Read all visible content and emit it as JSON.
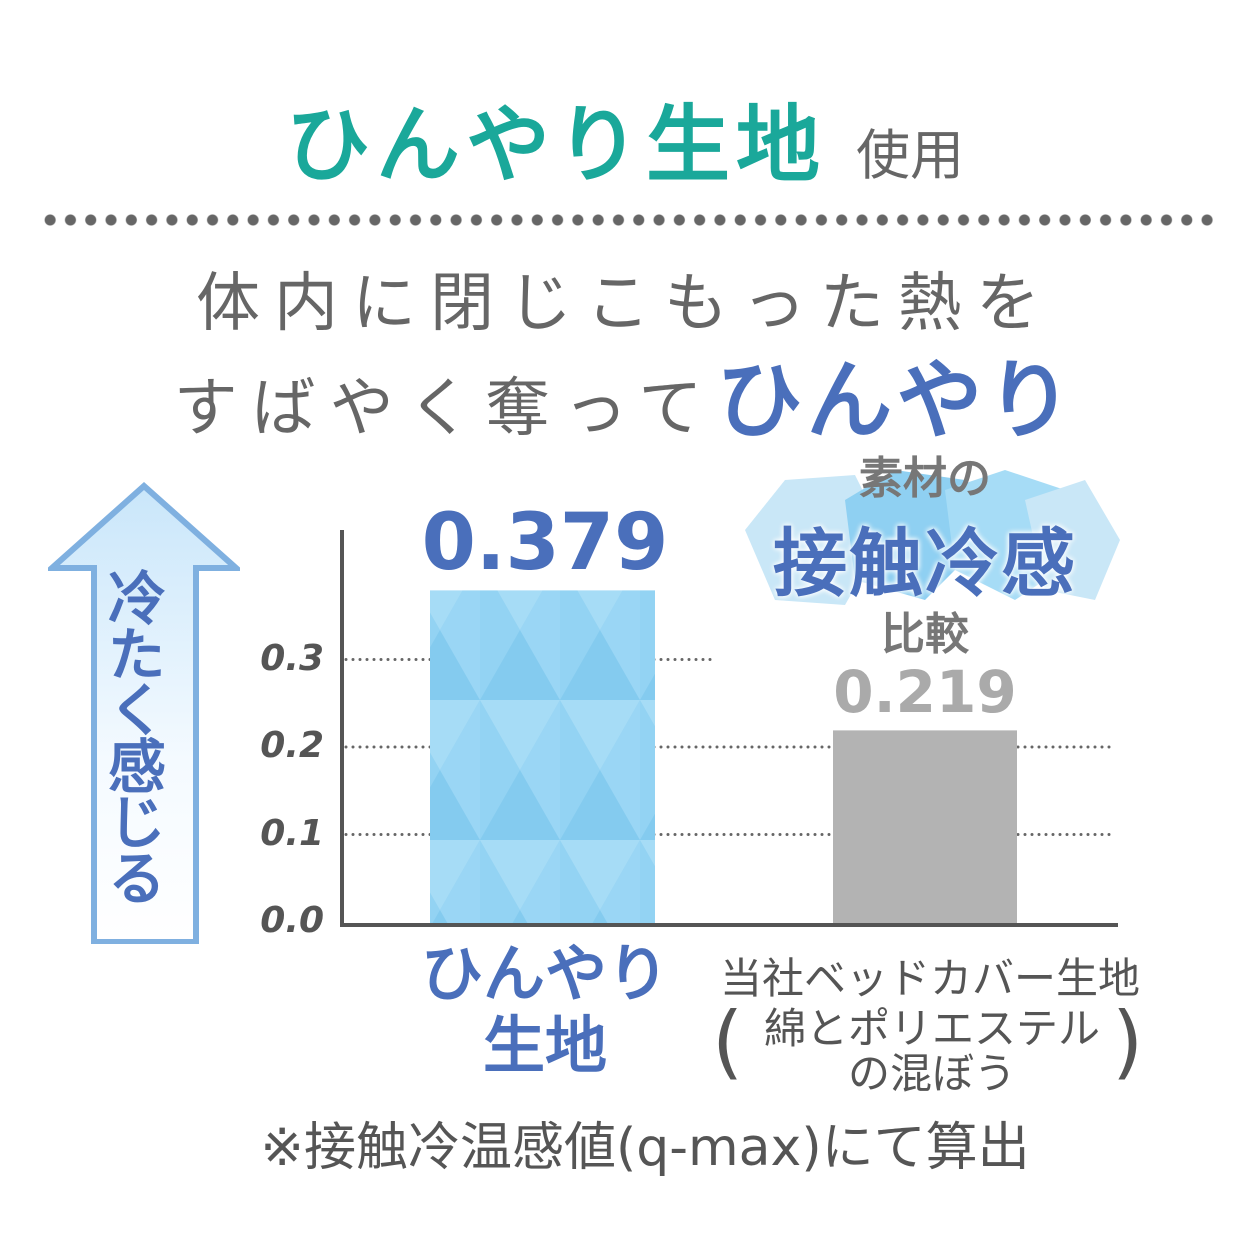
{
  "header": {
    "title": "ひんやり生地",
    "title_suffix": "使用",
    "lead_line1": "体内に閉じこもった熱を",
    "lead_line2": "すばやく奪って",
    "lead_line2_emphasis": "ひんやり"
  },
  "badge": {
    "top": "素材の",
    "main": "接触冷感",
    "bottom": "比較"
  },
  "colors": {
    "title": "#1aa89a",
    "accent_blue": "#4a6fbb",
    "bar_blue": "#8fd0f2",
    "bar_gray": "#b3b3b3",
    "text_gray": "#666666"
  },
  "chart_data": {
    "type": "bar",
    "ylabel": "冷たく感じる",
    "ylabel_icon": "up-arrow-icon",
    "categories": [
      "ひんやり\n生地",
      "当社ベッドカバー生地"
    ],
    "category_labels": {
      "c0_line1": "ひんやり",
      "c0_line2": "生地",
      "c1_line1": "当社ベッドカバー生地",
      "c1_line2": "綿とポリエステル",
      "c1_line3": "の混ぼう",
      "paren_open": "(",
      "paren_close": ")"
    },
    "values": [
      0.379,
      0.219
    ],
    "data_labels": [
      "0.379",
      "0.219"
    ],
    "yticks": [
      "0.0",
      "0.1",
      "0.2",
      "0.3"
    ],
    "ylim": [
      0,
      0.4
    ],
    "grid": "dotted horizontal at 0.1, 0.2, 0.3",
    "footnote": "※接触冷温感値(q-max)にて算出"
  }
}
